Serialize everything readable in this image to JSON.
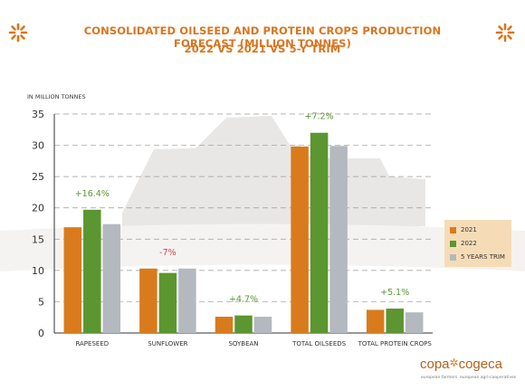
{
  "header": {
    "title_line1": "CONSOLIDATED OILSEED AND PROTEIN CROPS PRODUCTION FORECAST (MILLION TONNES)",
    "title_line2": "2022 VS 2021 VS 5-Y TRIM"
  },
  "logo": {
    "left_word": "copa",
    "right_word": "cogeca",
    "left_sub": "european farmers",
    "right_sub": "european agri-cooperatives"
  },
  "icons": {
    "decoration": "snowflake-asterisk-icon"
  },
  "colors": {
    "s2021": "#d97b1c",
    "s2022": "#5b9630",
    "s5y": "#b4b8bf",
    "accent": "#d9751f",
    "positive": "#5b9630",
    "negative": "#d9474b"
  },
  "chart_data": {
    "type": "bar",
    "title": "CONSOLIDATED OILSEED AND PROTEIN CROPS PRODUCTION FORECAST (MILLION TONNES)",
    "subtitle": "2022 VS 2021 VS 5-Y TRIM",
    "ylabel": "IN MILLION TONNES",
    "ylim": [
      0,
      35
    ],
    "yticks": [
      0,
      5,
      10,
      15,
      20,
      25,
      30,
      35
    ],
    "grid": true,
    "legend_position": "right",
    "categories": [
      "RAPESEED",
      "SUNFLOWER",
      "SOYBEAN",
      "TOTAL OILSEEDS",
      "TOTAL PROTEIN CROPS"
    ],
    "series": [
      {
        "name": "2021",
        "color": "#d97b1c",
        "values": [
          16.9,
          10.3,
          2.6,
          29.8,
          3.7
        ]
      },
      {
        "name": "2022",
        "color": "#5b9630",
        "values": [
          19.7,
          9.6,
          2.8,
          32.0,
          3.9
        ]
      },
      {
        "name": "5 YEARS TRIM",
        "color": "#b4b8bf",
        "values": [
          17.4,
          10.3,
          2.6,
          29.9,
          3.3
        ]
      }
    ],
    "annotations": [
      {
        "category": "RAPESEED",
        "text": "+16.4%",
        "color": "#5b9630"
      },
      {
        "category": "SUNFLOWER",
        "text": "-7%",
        "color": "#d9474b"
      },
      {
        "category": "SOYBEAN",
        "text": "+4.7%",
        "color": "#5b9630"
      },
      {
        "category": "TOTAL OILSEEDS",
        "text": "+7.2%",
        "color": "#5b9630"
      },
      {
        "category": "TOTAL PROTEIN CROPS",
        "text": "+5.1%",
        "color": "#5b9630"
      }
    ]
  }
}
